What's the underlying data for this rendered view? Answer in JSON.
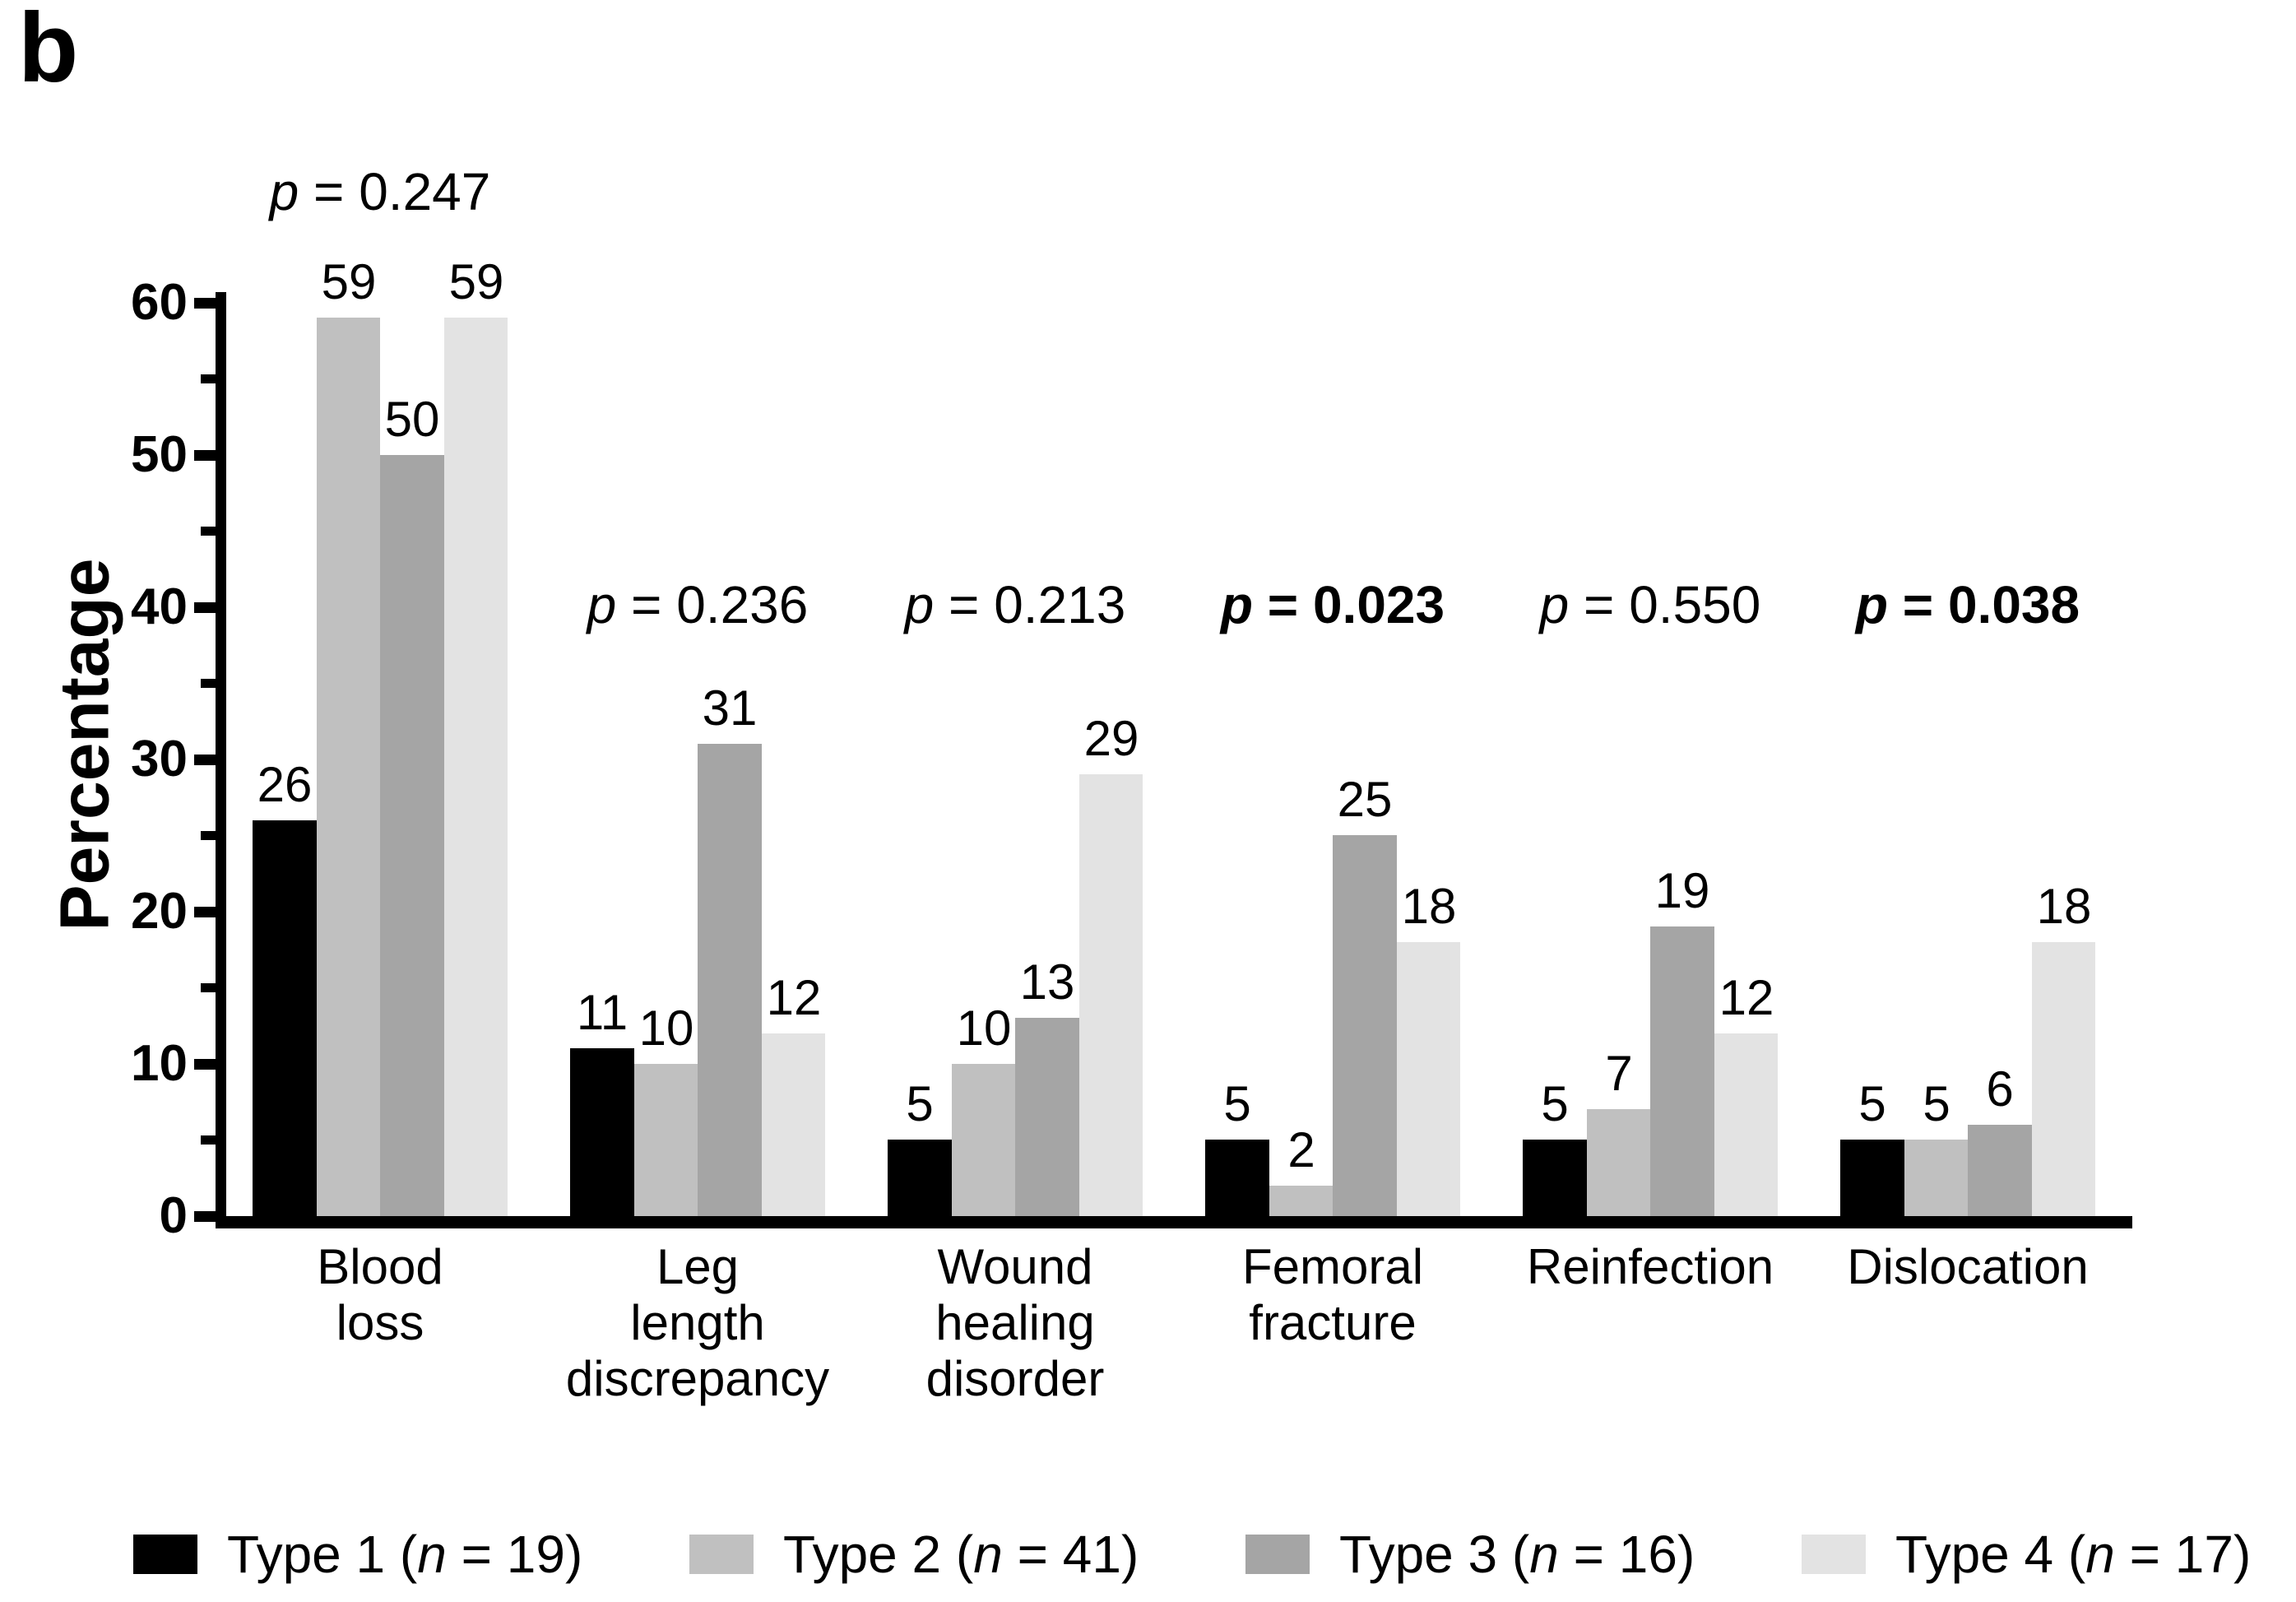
{
  "panel_label": "b",
  "chart_data": {
    "type": "bar",
    "title": "",
    "xlabel": "",
    "ylabel": "Percentage",
    "ylim": [
      0,
      60
    ],
    "y_major_step": 10,
    "y_minor_step": 5,
    "grid": false,
    "legend_position": "bottom",
    "categories": [
      "Blood loss",
      "Leg length discrepancy",
      "Wound healing disorder",
      "Femoral fracture",
      "Reinfection",
      "Dislocation"
    ],
    "category_label_lines": [
      [
        "Blood",
        "loss"
      ],
      [
        "Leg",
        "length",
        "discrepancy"
      ],
      [
        "Wound",
        "healing",
        "disorder"
      ],
      [
        "Femoral",
        "fracture"
      ],
      [
        "Reinfection"
      ],
      [
        "Dislocation"
      ]
    ],
    "series": [
      {
        "name": "Type 1",
        "n": "19",
        "color": "#000000",
        "values": [
          26,
          11,
          5,
          5,
          5,
          5
        ]
      },
      {
        "name": "Type 2",
        "n": "41",
        "color": "#c0c0c0",
        "values": [
          59,
          10,
          10,
          2,
          7,
          5
        ]
      },
      {
        "name": "Type 3",
        "n": "16",
        "color": "#a5a5a5",
        "values": [
          50,
          31,
          13,
          25,
          19,
          6
        ]
      },
      {
        "name": "Type 4",
        "n": "17",
        "color": "#e3e3e3",
        "values": [
          59,
          12,
          29,
          18,
          12,
          18
        ]
      }
    ],
    "p_values": [
      {
        "symbol": "p",
        "value": "0.247",
        "bold": false
      },
      {
        "symbol": "p",
        "value": "0.236",
        "bold": false
      },
      {
        "symbol": "p",
        "value": "0.213",
        "bold": false
      },
      {
        "symbol": "p",
        "value": "0.023",
        "bold": true
      },
      {
        "symbol": "p",
        "value": "0.550",
        "bold": false
      },
      {
        "symbol": "p",
        "value": "0.038",
        "bold": true
      }
    ],
    "y_tick_labels": [
      "0",
      "10",
      "20",
      "30",
      "40",
      "50",
      "60"
    ]
  }
}
